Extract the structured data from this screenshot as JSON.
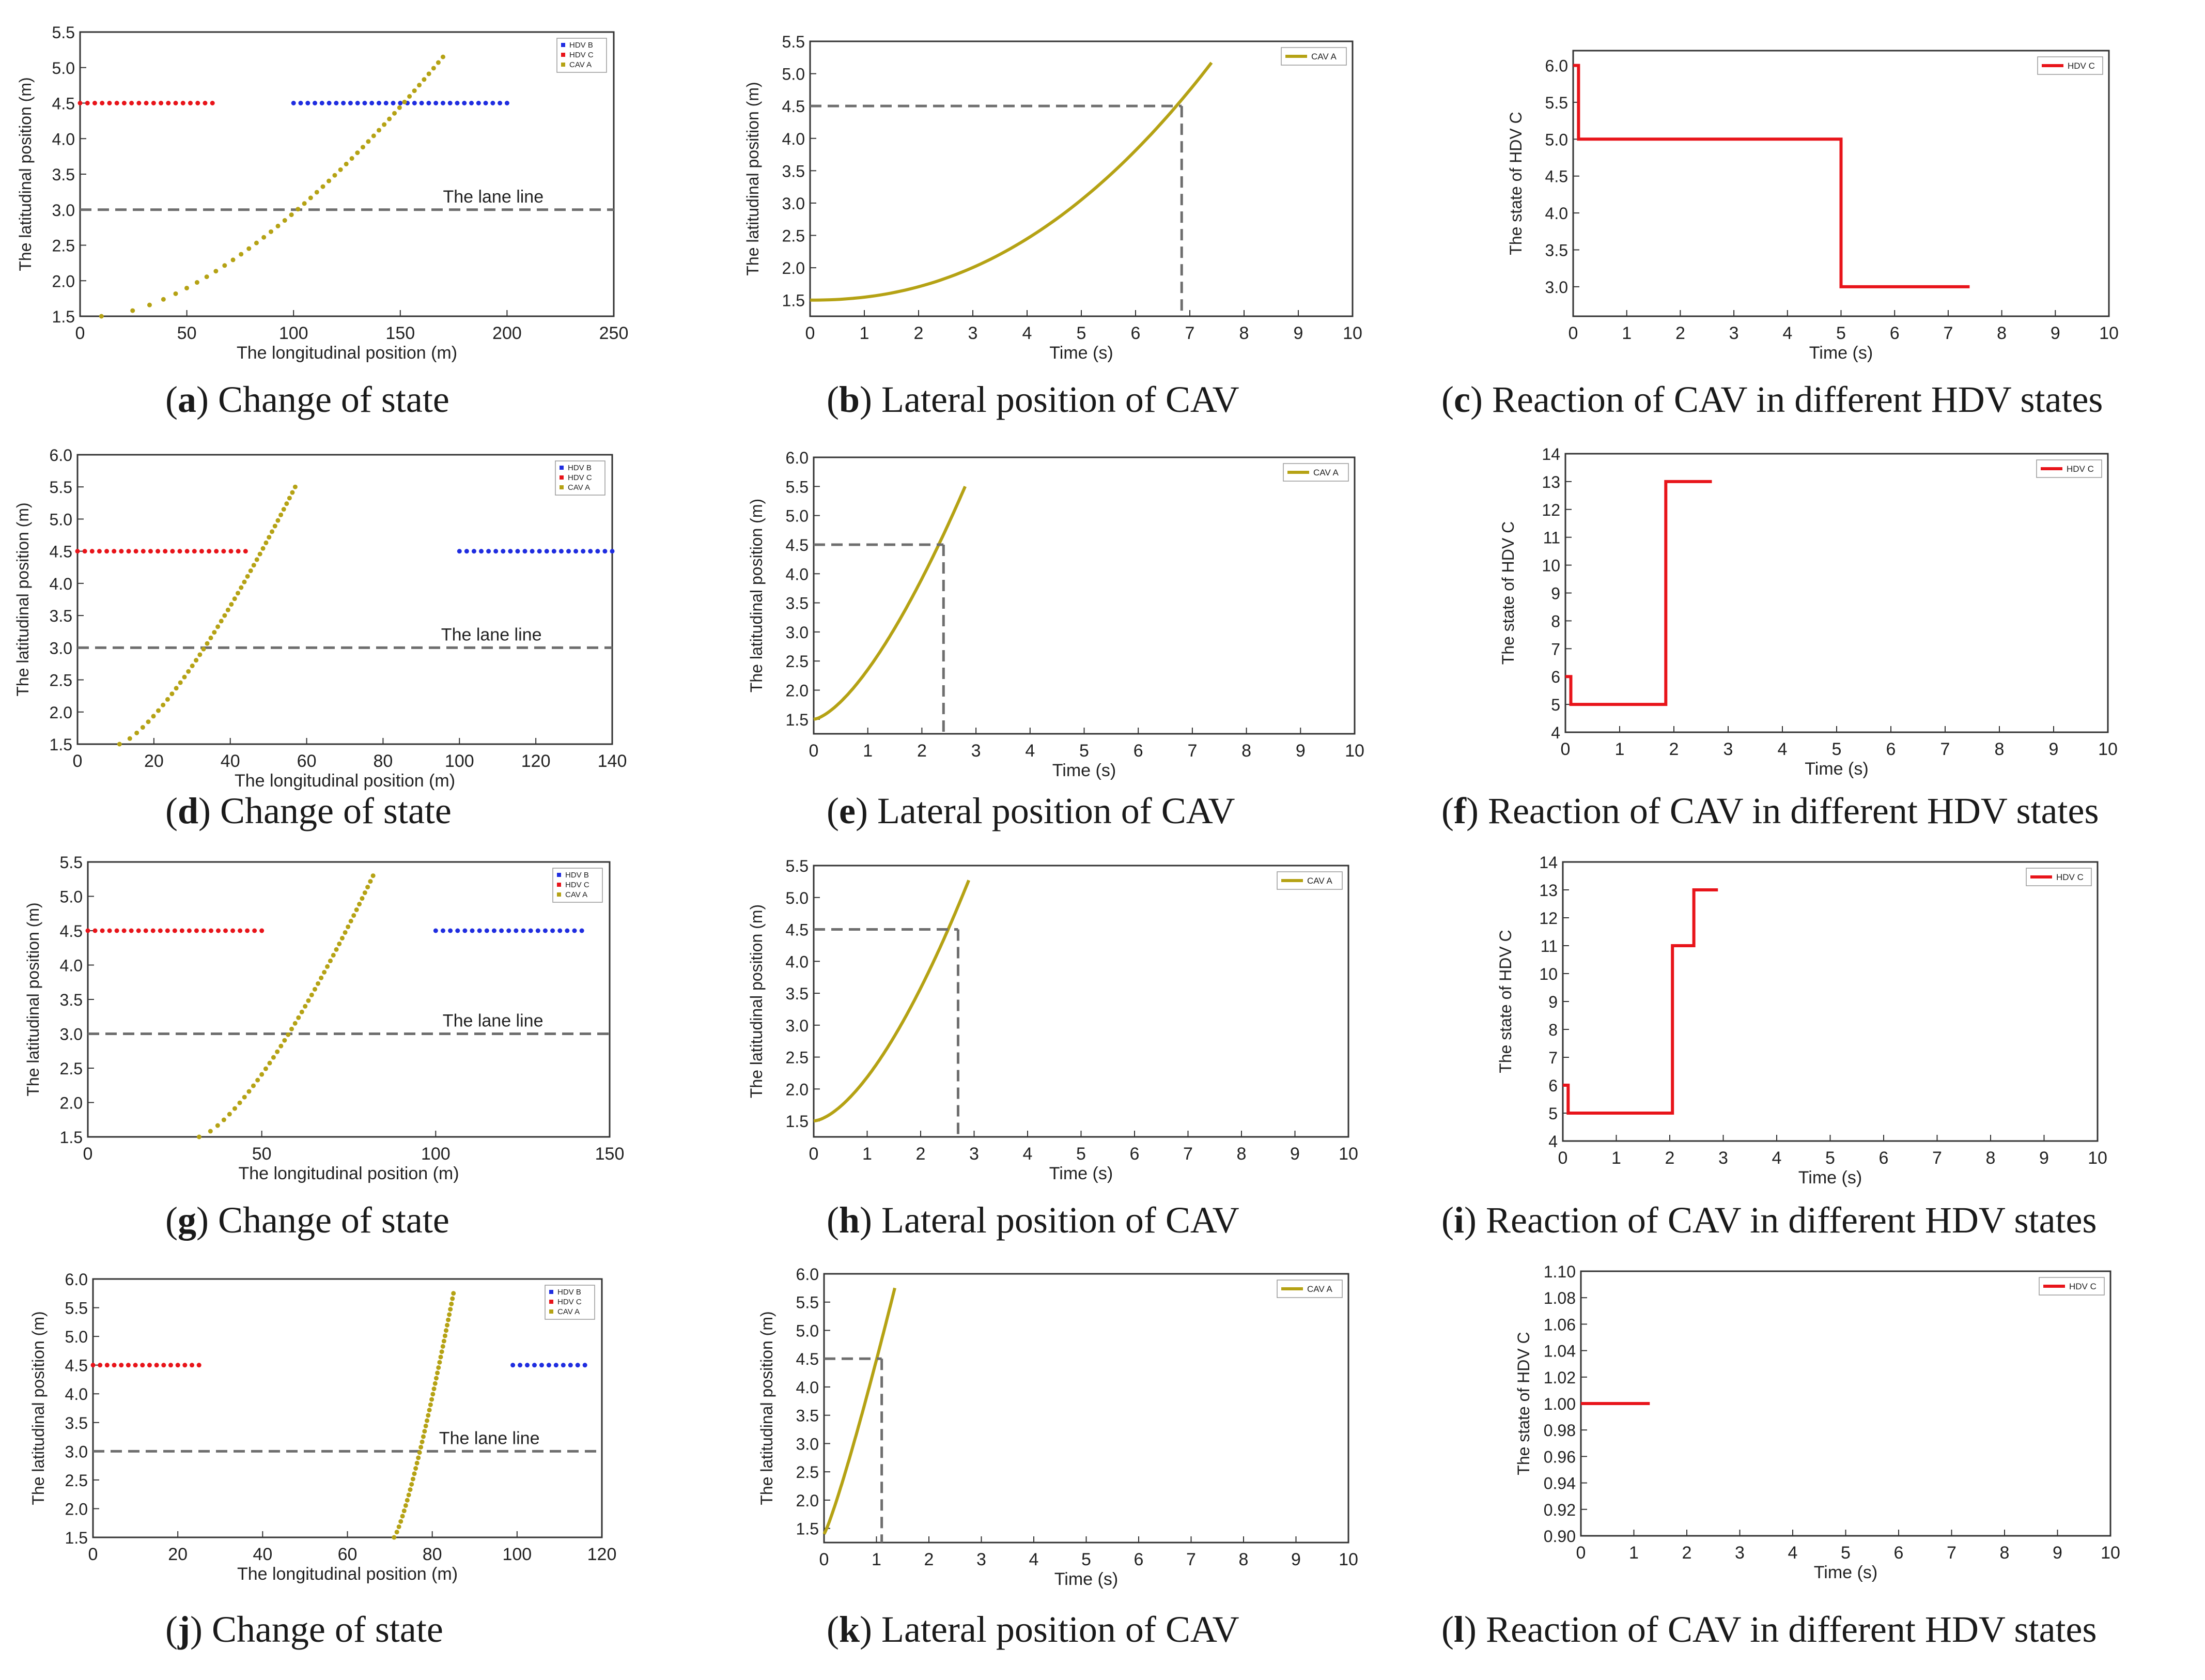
{
  "colors": {
    "hdv_b": "#1f2de0",
    "hdv_c": "#e8141a",
    "cav_a": "#b5a214",
    "lane": "#6e6e6e",
    "axis": "#333333"
  },
  "captions": [
    {
      "letter": "a",
      "text": "Change of state"
    },
    {
      "letter": "b",
      "text": "Lateral position of CAV"
    },
    {
      "letter": "c",
      "text": "Reaction of CAV in different HDV states"
    },
    {
      "letter": "d",
      "text": "Change of state"
    },
    {
      "letter": "e",
      "text": "Lateral position of CAV"
    },
    {
      "letter": "f",
      "text": "Reaction of CAV in different HDV states"
    },
    {
      "letter": "g",
      "text": "Change of state"
    },
    {
      "letter": "h",
      "text": "Lateral position of CAV"
    },
    {
      "letter": "i",
      "text": "Reaction of CAV in different HDV states"
    },
    {
      "letter": "j",
      "text": "Change of state"
    },
    {
      "letter": "k",
      "text": "Lateral position of CAV"
    },
    {
      "letter": "l",
      "text": "Reaction of CAV in different HDV states"
    }
  ],
  "chart_data": [
    {
      "id": "a",
      "type": "scatter",
      "title": "",
      "xlabel": "The longitudinal position (m)",
      "ylabel": "The latitudinal position (m)",
      "xlim": [
        0,
        250
      ],
      "ylim": [
        1.5,
        5.5
      ],
      "xticks": [
        "0",
        "50",
        "100",
        "150",
        "200",
        "250"
      ],
      "yticks": [
        "1.5",
        "2.0",
        "2.5",
        "3.0",
        "3.5",
        "4.0",
        "4.5",
        "5.0",
        "5.5"
      ],
      "legend": [
        "HDV B",
        "HDV C",
        "CAV A"
      ],
      "legend_position": "top-right",
      "lane": {
        "y": 3.0,
        "label": "The lane line"
      },
      "hdv_c": {
        "x_start": 0,
        "x_end": 62,
        "y": 4.5
      },
      "hdv_b": {
        "x_start": 100,
        "x_end": 200,
        "y": 4.5
      },
      "cav_a": {
        "x_start": 10,
        "y_start": 1.5,
        "x_end": 170,
        "y_end": 5.15,
        "curve": 1.6
      }
    },
    {
      "id": "b",
      "type": "line",
      "title": "",
      "xlabel": "Time (s)",
      "ylabel": "The latitudinal position (m)",
      "xlim": [
        0,
        10
      ],
      "ylim": [
        1.25,
        5.5
      ],
      "xticks": [
        "0",
        "1",
        "2",
        "3",
        "4",
        "5",
        "6",
        "7",
        "8",
        "9",
        "10"
      ],
      "yticks": [
        "1.5",
        "2.0",
        "2.5",
        "3.0",
        "3.5",
        "4.0",
        "4.5",
        "5.0",
        "5.5"
      ],
      "legend": [
        "CAV A"
      ],
      "legend_position": "top-right",
      "series": {
        "name": "CAV A",
        "t_end": 7.4,
        "y_start": 1.5,
        "y_end": 5.17,
        "curve": 2.2
      },
      "crossing": {
        "t": 6.85,
        "y": 4.5
      }
    },
    {
      "id": "c",
      "type": "line",
      "title": "",
      "xlabel": "Time (s)",
      "ylabel": "The state of HDV C",
      "xlim": [
        0,
        10
      ],
      "ylim": [
        2.6,
        6.2
      ],
      "xticks": [
        "0",
        "1",
        "2",
        "3",
        "4",
        "5",
        "6",
        "7",
        "8",
        "9",
        "10"
      ],
      "yticks": [
        "3.0",
        "3.5",
        "4.0",
        "4.5",
        "5.0",
        "5.5",
        "6.0"
      ],
      "legend": [
        "HDV C"
      ],
      "legend_position": "top-right",
      "steps": [
        [
          0,
          6
        ],
        [
          0.1,
          6
        ],
        [
          0.1,
          5
        ],
        [
          5.0,
          5
        ],
        [
          5.0,
          3
        ],
        [
          7.4,
          3
        ]
      ]
    },
    {
      "id": "d",
      "type": "scatter",
      "title": "",
      "xlabel": "The longitudinal position (m)",
      "ylabel": "The latitudinal position (m)",
      "xlim": [
        0,
        140
      ],
      "ylim": [
        1.5,
        6.0
      ],
      "xticks": [
        "0",
        "20",
        "40",
        "60",
        "80",
        "100",
        "120",
        "140"
      ],
      "yticks": [
        "1.5",
        "2.0",
        "2.5",
        "3.0",
        "3.5",
        "4.0",
        "4.5",
        "5.0",
        "5.5",
        "6.0"
      ],
      "legend": [
        "HDV B",
        "HDV C",
        "CAV A"
      ],
      "legend_position": "top-right",
      "lane": {
        "y": 3.0,
        "label": "The lane line"
      },
      "hdv_c": {
        "x_start": 0,
        "x_end": 44,
        "y": 4.5
      },
      "hdv_b": {
        "x_start": 100,
        "x_end": 140,
        "y": 4.5
      },
      "cav_a": {
        "x_start": 11,
        "y_start": 1.5,
        "x_end": 57,
        "y_end": 5.5,
        "curve": 1.35
      }
    },
    {
      "id": "e",
      "type": "line",
      "title": "",
      "xlabel": "Time (s)",
      "ylabel": "The latitudinal position (m)",
      "xlim": [
        0,
        10
      ],
      "ylim": [
        1.25,
        6.0
      ],
      "xticks": [
        "0",
        "1",
        "2",
        "3",
        "4",
        "5",
        "6",
        "7",
        "8",
        "9",
        "10"
      ],
      "yticks": [
        "1.5",
        "2.0",
        "2.5",
        "3.0",
        "3.5",
        "4.0",
        "4.5",
        "5.0",
        "5.5",
        "6.0"
      ],
      "legend": [
        "CAV A"
      ],
      "legend_position": "top-right",
      "series": {
        "name": "CAV A",
        "t_end": 2.8,
        "y_start": 1.5,
        "y_end": 5.5,
        "curve": 1.5
      },
      "crossing": {
        "t": 2.4,
        "y": 4.5
      }
    },
    {
      "id": "f",
      "type": "line",
      "title": "",
      "xlabel": "Time (s)",
      "ylabel": "The state of HDV C",
      "xlim": [
        0,
        10
      ],
      "ylim": [
        4,
        14
      ],
      "xticks": [
        "0",
        "1",
        "2",
        "3",
        "4",
        "5",
        "6",
        "7",
        "8",
        "9",
        "10"
      ],
      "yticks": [
        "4",
        "5",
        "6",
        "7",
        "8",
        "9",
        "10",
        "11",
        "12",
        "13",
        "14"
      ],
      "legend": [
        "HDV C"
      ],
      "legend_position": "top-right",
      "steps": [
        [
          0,
          6
        ],
        [
          0.1,
          6
        ],
        [
          0.1,
          5
        ],
        [
          1.85,
          5
        ],
        [
          1.85,
          13
        ],
        [
          2.7,
          13
        ]
      ]
    },
    {
      "id": "g",
      "type": "scatter",
      "title": "",
      "xlabel": "The longitudinal position (m)",
      "ylabel": "The latitudinal position (m)",
      "xlim": [
        0,
        150
      ],
      "ylim": [
        1.5,
        5.5
      ],
      "xticks": [
        "0",
        "50",
        "100",
        "150"
      ],
      "yticks": [
        "1.5",
        "2.0",
        "2.5",
        "3.0",
        "3.5",
        "4.0",
        "4.5",
        "5.0",
        "5.5"
      ],
      "legend": [
        "HDV B",
        "HDV C",
        "CAV A"
      ],
      "legend_position": "top-right",
      "lane": {
        "y": 3.0,
        "label": "The lane line"
      },
      "hdv_c": {
        "x_start": 0,
        "x_end": 50,
        "y": 4.5
      },
      "hdv_b": {
        "x_start": 100,
        "x_end": 142,
        "y": 4.5
      },
      "cav_a": {
        "x_start": 32,
        "y_start": 1.5,
        "x_end": 82,
        "y_end": 5.3,
        "curve": 1.4
      }
    },
    {
      "id": "h",
      "type": "line",
      "title": "",
      "xlabel": "Time (s)",
      "ylabel": "The latitudinal position (m)",
      "xlim": [
        0,
        10
      ],
      "ylim": [
        1.25,
        5.5
      ],
      "xticks": [
        "0",
        "1",
        "2",
        "3",
        "4",
        "5",
        "6",
        "7",
        "8",
        "9",
        "10"
      ],
      "yticks": [
        "1.5",
        "2.0",
        "2.5",
        "3.0",
        "3.5",
        "4.0",
        "4.5",
        "5.0",
        "5.5"
      ],
      "legend": [
        "CAV A"
      ],
      "legend_position": "top-right",
      "series": {
        "name": "CAV A",
        "t_end": 2.9,
        "y_start": 1.5,
        "y_end": 5.27,
        "curve": 1.6
      },
      "crossing": {
        "t": 2.7,
        "y": 4.5
      }
    },
    {
      "id": "i",
      "type": "line",
      "title": "",
      "xlabel": "Time (s)",
      "ylabel": "The state of HDV C",
      "xlim": [
        0,
        10
      ],
      "ylim": [
        4,
        14
      ],
      "xticks": [
        "0",
        "1",
        "2",
        "3",
        "4",
        "5",
        "6",
        "7",
        "8",
        "9",
        "10"
      ],
      "yticks": [
        "4",
        "5",
        "6",
        "7",
        "8",
        "9",
        "10",
        "11",
        "12",
        "13",
        "14"
      ],
      "legend": [
        "HDV C"
      ],
      "legend_position": "top-right",
      "steps": [
        [
          0,
          6
        ],
        [
          0.1,
          6
        ],
        [
          0.1,
          5
        ],
        [
          2.05,
          5
        ],
        [
          2.05,
          11
        ],
        [
          2.45,
          11
        ],
        [
          2.45,
          13
        ],
        [
          2.9,
          13
        ]
      ]
    },
    {
      "id": "j",
      "type": "scatter",
      "title": "",
      "xlabel": "The longitudinal position (m)",
      "ylabel": "The latitudinal position (m)",
      "xlim": [
        0,
        120
      ],
      "ylim": [
        1.5,
        6.0
      ],
      "xticks": [
        "0",
        "20",
        "40",
        "60",
        "80",
        "100",
        "120"
      ],
      "yticks": [
        "1.5",
        "2.0",
        "2.5",
        "3.0",
        "3.5",
        "4.0",
        "4.5",
        "5.0",
        "5.5",
        "6.0"
      ],
      "legend": [
        "HDV B",
        "HDV C",
        "CAV A"
      ],
      "legend_position": "top-right",
      "lane": {
        "y": 3.0,
        "label": "The lane line"
      },
      "hdv_c": {
        "x_start": 0,
        "x_end": 25,
        "y": 4.5
      },
      "hdv_b": {
        "x_start": 99,
        "x_end": 116,
        "y": 4.5
      },
      "cav_a": {
        "x_start": 71,
        "y_start": 1.5,
        "x_end": 85,
        "y_end": 5.75,
        "curve": 1.25
      }
    },
    {
      "id": "k",
      "type": "line",
      "title": "",
      "xlabel": "Time (s)",
      "ylabel": "The latitudinal position (m)",
      "xlim": [
        0,
        10
      ],
      "ylim": [
        1.25,
        6.0
      ],
      "xticks": [
        "0",
        "1",
        "2",
        "3",
        "4",
        "5",
        "6",
        "7",
        "8",
        "9",
        "10"
      ],
      "yticks": [
        "1.5",
        "2.0",
        "2.5",
        "3.0",
        "3.5",
        "4.0",
        "4.5",
        "5.0",
        "5.5",
        "6.0"
      ],
      "legend": [
        "CAV A"
      ],
      "legend_position": "top-right",
      "series": {
        "name": "CAV A",
        "t_end": 1.35,
        "y_start": 1.4,
        "y_end": 5.75,
        "curve": 1.15
      },
      "crossing": {
        "t": 1.1,
        "y": 4.5
      }
    },
    {
      "id": "l",
      "type": "line",
      "title": "",
      "xlabel": "Time (s)",
      "ylabel": "The state of HDV C",
      "xlim": [
        0,
        10
      ],
      "ylim": [
        0.9,
        1.1
      ],
      "xticks": [
        "0",
        "1",
        "2",
        "3",
        "4",
        "5",
        "6",
        "7",
        "8",
        "9",
        "10"
      ],
      "yticks": [
        "0.90",
        "0.92",
        "0.94",
        "0.96",
        "0.98",
        "1.00",
        "1.02",
        "1.04",
        "1.06",
        "1.08",
        "1.10"
      ],
      "legend": [
        "HDV C"
      ],
      "legend_position": "top-right",
      "steps": [
        [
          0,
          1.0
        ],
        [
          1.3,
          1.0
        ]
      ]
    }
  ]
}
